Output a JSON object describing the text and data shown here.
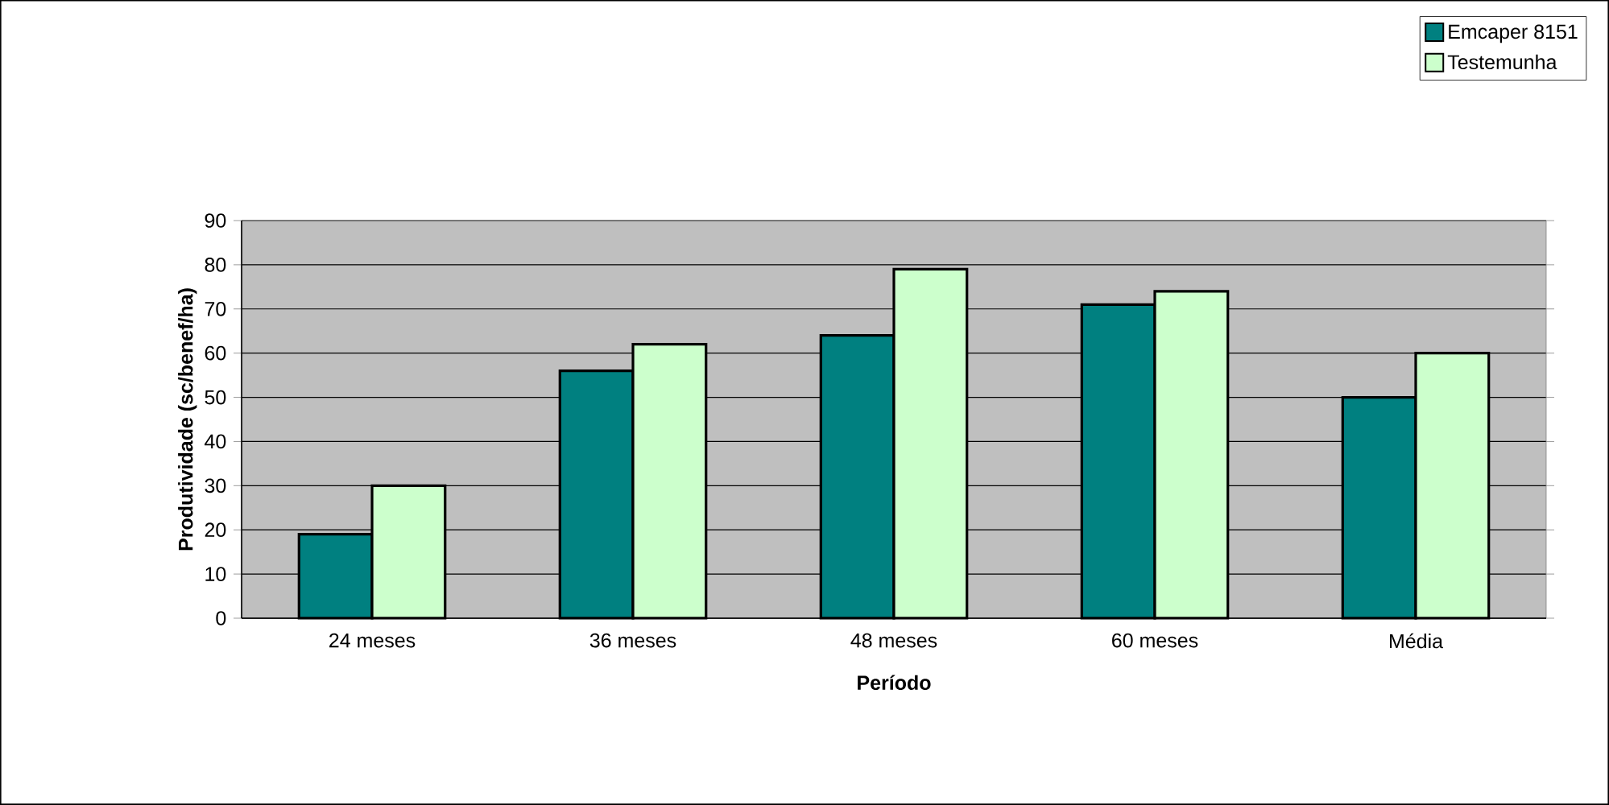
{
  "chart_data": {
    "type": "bar",
    "xlabel": "Período",
    "ylabel": "Produtividade (sc/benef/ha)",
    "categories": [
      "24 meses",
      "36 meses",
      "48 meses",
      "60 meses",
      "Média"
    ],
    "series": [
      {
        "name": "Emcaper 8151",
        "color": "#008080",
        "values": [
          19,
          56,
          64,
          71,
          50
        ]
      },
      {
        "name": "Testemunha",
        "color": "#ccffcc",
        "values": [
          30,
          62,
          79,
          74,
          60
        ]
      }
    ],
    "ylim": [
      0,
      90
    ],
    "yticks": [
      0,
      10,
      20,
      30,
      40,
      50,
      60,
      70,
      80,
      90
    ],
    "grid": "y",
    "legend": "top right"
  }
}
